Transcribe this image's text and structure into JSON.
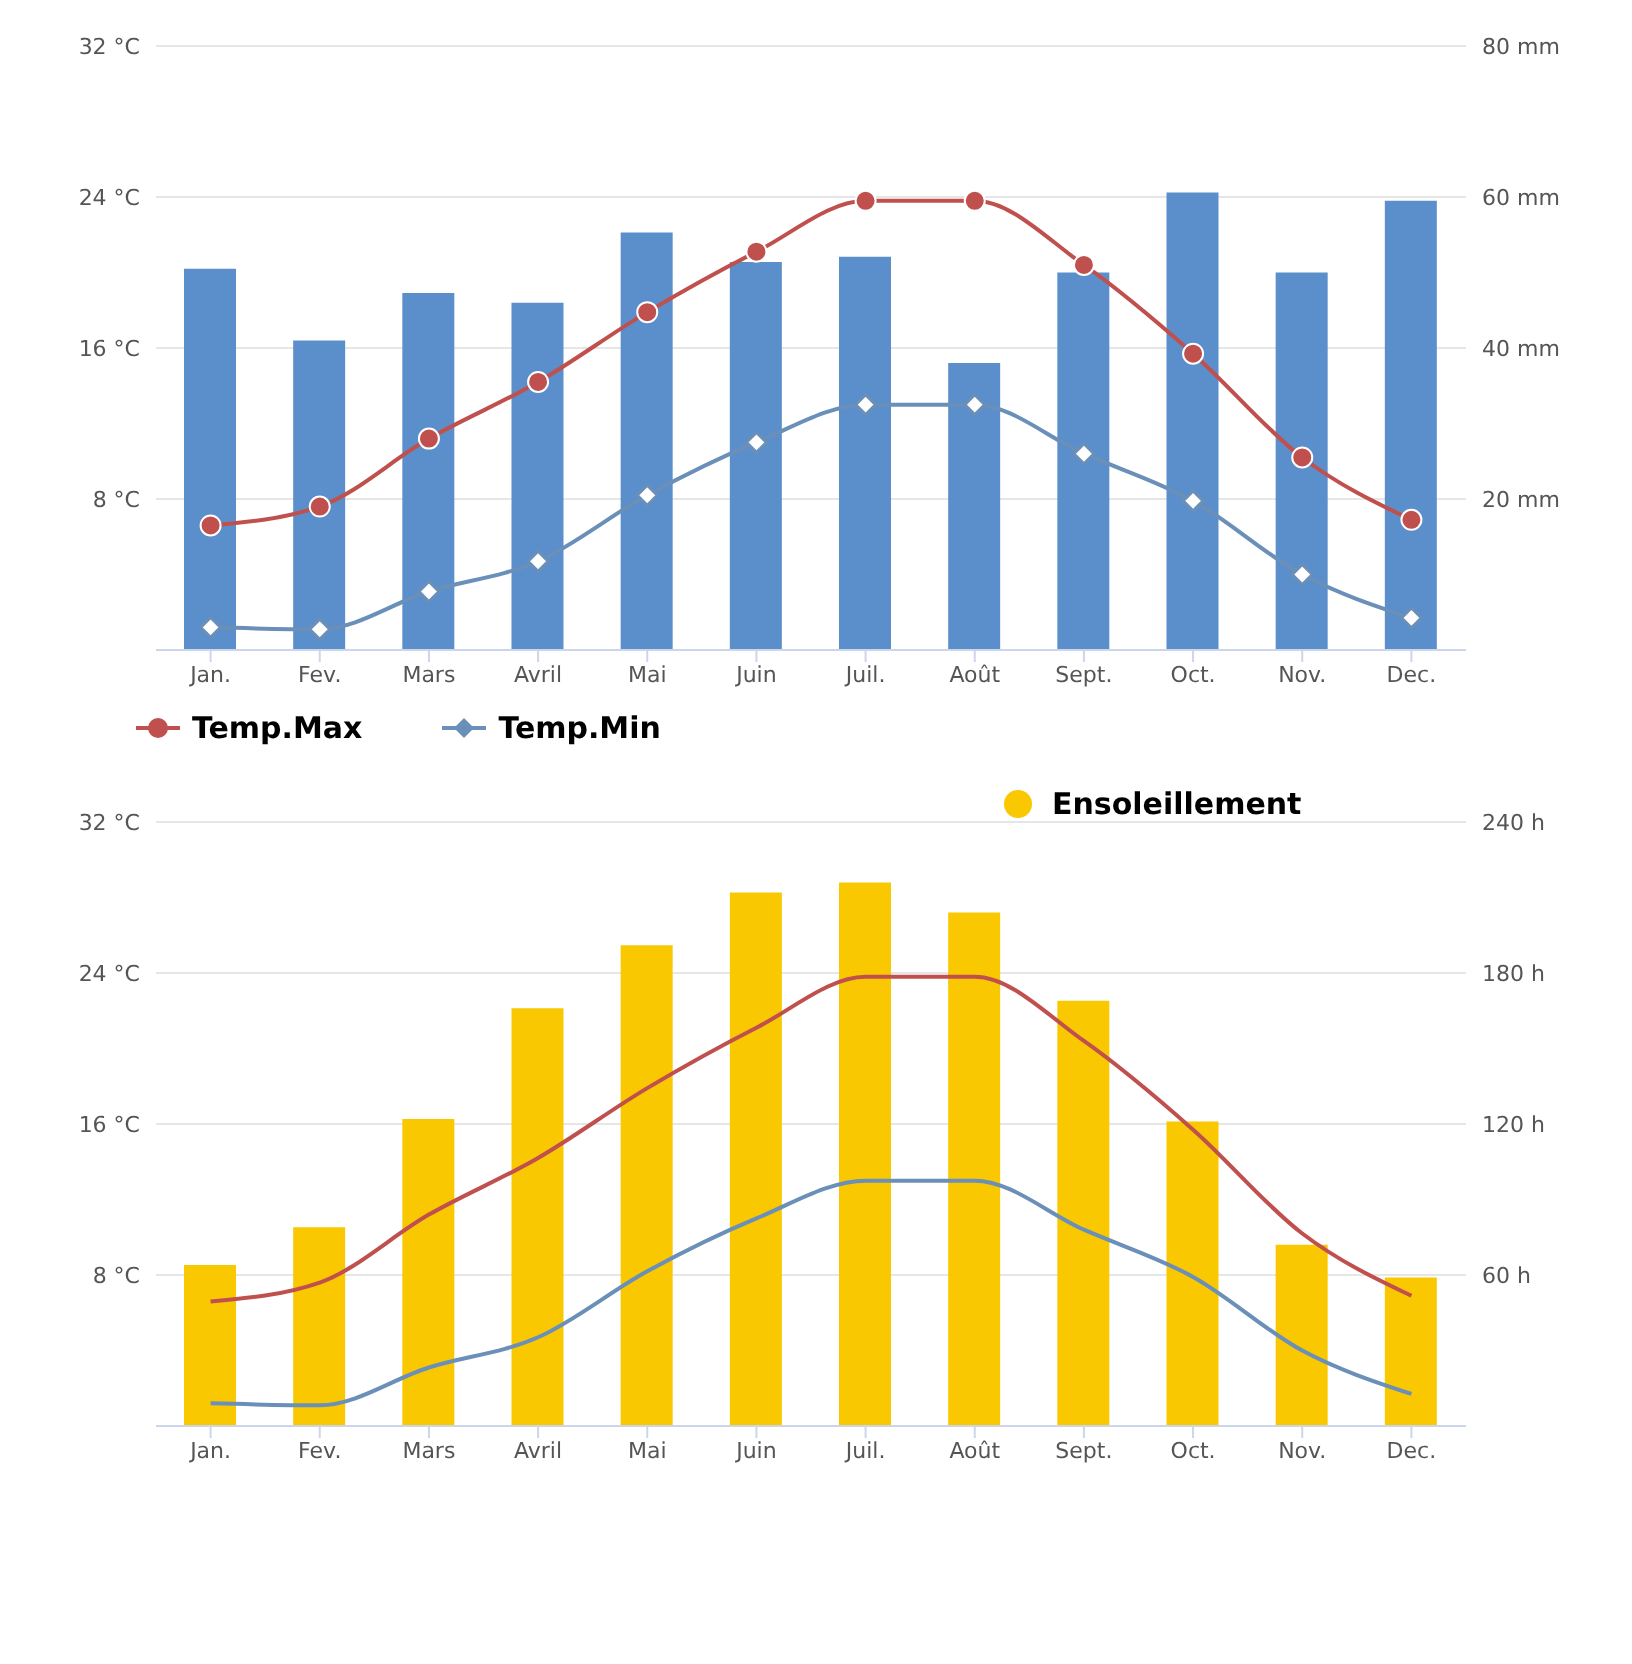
{
  "chart_data": [
    {
      "type": "bar",
      "categories": [
        "Jan.",
        "Fev.",
        "Mars",
        "Avril",
        "Mai",
        "Juin",
        "Juil.",
        "Août",
        "Sept.",
        "Oct.",
        "Nov.",
        "Dec."
      ],
      "series": [
        {
          "axis": "y2",
          "color": "#5a8fcb",
          "values": [
            50.5,
            41,
            47.3,
            46,
            55.3,
            51.4,
            52.1,
            38,
            50,
            60.6,
            50,
            59.5
          ]
        },
        {
          "type": "line",
          "name": "Temp.Max",
          "color": "#c0504d",
          "marker": "circle",
          "values": [
            6.6,
            7.6,
            11.2,
            14.2,
            17.9,
            21.1,
            23.8,
            23.8,
            20.4,
            15.7,
            10.2,
            6.9
          ]
        },
        {
          "type": "line",
          "name": "Temp.Min",
          "color": "#6a8fb8",
          "marker": "diamond",
          "values": [
            1.2,
            1.1,
            3.1,
            4.7,
            8.2,
            11,
            13,
            13,
            10.4,
            7.9,
            4,
            1.7
          ]
        }
      ],
      "ylim": [
        0,
        32
      ],
      "yticks": [
        {
          "value": 8,
          "label": "8 °C"
        },
        {
          "value": 16,
          "label": "16 °C"
        },
        {
          "value": 24,
          "label": "24 °C"
        },
        {
          "value": 32,
          "label": "32 °C"
        }
      ],
      "y2lim": [
        0,
        80
      ],
      "y2ticks": [
        {
          "value": 20,
          "label": "20 mm"
        },
        {
          "value": 40,
          "label": "40 mm"
        },
        {
          "value": 60,
          "label": "60 mm"
        },
        {
          "value": 80,
          "label": "80 mm"
        }
      ],
      "grid": "y",
      "legend": "bottom"
    },
    {
      "type": "bar",
      "categories": [
        "Jan.",
        "Fev.",
        "Mars",
        "Avril",
        "Mai",
        "Juin",
        "Juil.",
        "Août",
        "Sept.",
        "Oct.",
        "Nov.",
        "Dec."
      ],
      "series": [
        {
          "type": "line",
          "color": "#c0504d",
          "marker": "none",
          "values": [
            6.6,
            7.6,
            11.2,
            14.2,
            17.9,
            21.1,
            23.8,
            23.8,
            20.4,
            15.7,
            10.2,
            6.9
          ]
        },
        {
          "type": "line",
          "color": "#6a8fb8",
          "marker": "none",
          "values": [
            1.2,
            1.1,
            3.1,
            4.7,
            8.2,
            11,
            13,
            13,
            10.4,
            7.9,
            4,
            1.7
          ]
        },
        {
          "name": "Ensoleillement",
          "axis": "y2",
          "color": "#f9c800",
          "values": [
            64,
            79,
            122,
            166,
            191,
            212,
            216,
            204,
            169,
            121,
            72,
            59
          ]
        }
      ],
      "ylim": [
        0,
        32
      ],
      "yticks": [
        {
          "value": 8,
          "label": "8 °C"
        },
        {
          "value": 16,
          "label": "16 °C"
        },
        {
          "value": 24,
          "label": "24 °C"
        },
        {
          "value": 32,
          "label": "32 °C"
        }
      ],
      "y2lim": [
        0,
        240
      ],
      "y2ticks": [
        {
          "value": 60,
          "label": "60 h"
        },
        {
          "value": 120,
          "label": "120 h"
        },
        {
          "value": 180,
          "label": "180 h"
        },
        {
          "value": 240,
          "label": "240 h"
        }
      ],
      "grid": "y",
      "legend": "top"
    }
  ]
}
